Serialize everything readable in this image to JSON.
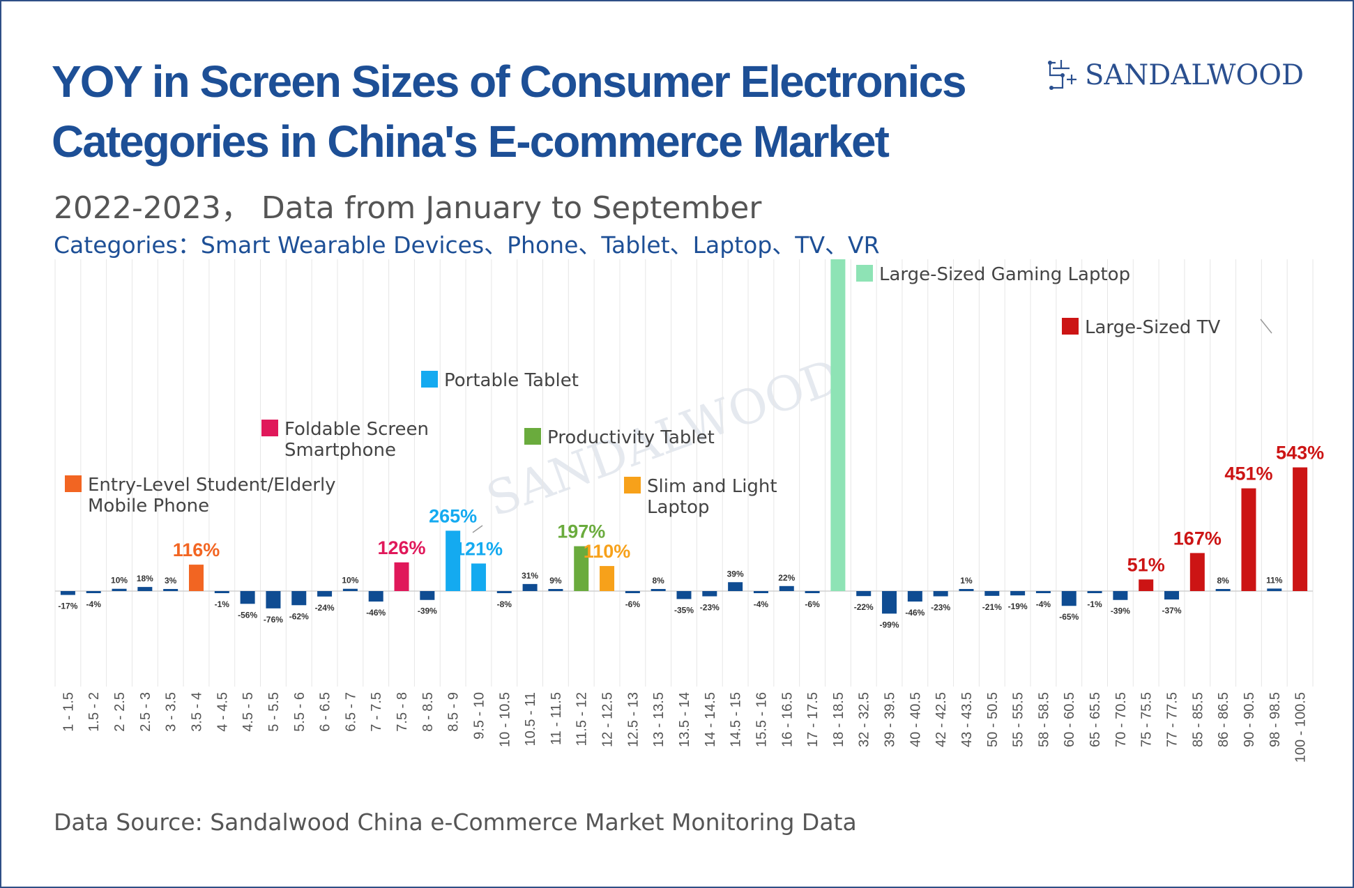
{
  "header": {
    "title_line1": "YOY in Screen Sizes of Consumer Electronics",
    "title_line2": "Categories in China's E-commerce Market",
    "subtitle": "2022-2023， Data from January to September",
    "categories_line": "Categories：Smart Wearable Devices、Phone、Tablet、Laptop、TV、VR"
  },
  "logo": {
    "text": "SANDALWOOD",
    "watermark": "SANDALWOOD",
    "icon": "sandalwood-logo-icon"
  },
  "footer": {
    "source": "Data Source: Sandalwood China e-Commerce Market Monitoring Data"
  },
  "colors": {
    "default_bar": "#0f4c92",
    "entry_level": "#f26522",
    "foldable": "#e0185a",
    "portable_tablet": "#14aaf0",
    "productivity_tablet": "#6aab3d",
    "slim_laptop": "#f7a11a",
    "gaming_laptop": "#8ee3b5",
    "large_tv": "#cc1414",
    "title": "#1d4f96"
  },
  "chart_data": {
    "type": "bar",
    "title": "YOY in Screen Sizes of Consumer Electronics Categories in China's E-commerce Market",
    "categories": [
      "1 - 1.5",
      "1.5 - 2",
      "2 - 2.5",
      "2.5 - 3",
      "3 - 3.5",
      "3.5 - 4",
      "4 - 4.5",
      "4.5 - 5",
      "5 - 5.5",
      "5.5 - 6",
      "6 - 6.5",
      "6.5 - 7",
      "7 - 7.5",
      "7.5 - 8",
      "8 - 8.5",
      "8.5 - 9",
      "9.5 - 10",
      "10 - 10.5",
      "10.5 - 11",
      "11 - 11.5",
      "11.5 - 12",
      "12 - 12.5",
      "12.5 - 13",
      "13 - 13.5",
      "13.5 - 14",
      "14 - 14.5",
      "14.5 - 15",
      "15.5 - 16",
      "16 - 16.5",
      "17 - 17.5",
      "18 - 18.5",
      "32 - 32.5",
      "39 - 39.5",
      "40 - 40.5",
      "42 - 42.5",
      "43 - 43.5",
      "50 - 50.5",
      "55 - 55.5",
      "58 - 58.5",
      "60 - 60.5",
      "65 - 65.5",
      "70 - 70.5",
      "75 - 75.5",
      "77 - 77.5",
      "85 - 85.5",
      "86 - 86.5",
      "90 - 90.5",
      "98 - 98.5",
      "100 - 100.5"
    ],
    "values": [
      -17,
      -4,
      10,
      18,
      3,
      116,
      -1,
      -56,
      -76,
      -62,
      -24,
      10,
      -46,
      126,
      -39,
      265,
      121,
      -8,
      31,
      9,
      197,
      110,
      -6,
      8,
      -35,
      -23,
      39,
      -4,
      22,
      -6,
      null,
      -22,
      -99,
      -46,
      -23,
      1,
      -21,
      -19,
      -4,
      -65,
      -1,
      -39,
      51,
      -37,
      167,
      8,
      451,
      11,
      543
    ],
    "labels": [
      "-17%",
      "-4%",
      "10%",
      "18%",
      "3%",
      "116%",
      "-1%",
      "-56%",
      "-76%",
      "-62%",
      "-24%",
      "10%",
      "-46%",
      "126%",
      "-39%",
      "265%",
      "121%",
      "-8%",
      "31%",
      "9%",
      "197%",
      "110%",
      "-6%",
      "8%",
      "-35%",
      "-23%",
      "39%",
      "-4%",
      "22%",
      "-6%",
      "",
      "-22%",
      "-99%",
      "-46%",
      "-23%",
      "1%",
      "-21%",
      "-19%",
      "-4%",
      "-65%",
      "-1%",
      "-39%",
      "51%",
      "-37%",
      "167%",
      "8%",
      "451%",
      "11%",
      "543%"
    ],
    "highlights": [
      {
        "name": "Entry-Level Student/Elderly Mobile Phone",
        "index": 5,
        "color": "#f26522"
      },
      {
        "name": "Foldable Screen Smartphone",
        "index": 13,
        "color": "#e0185a"
      },
      {
        "name": "Portable Tablet",
        "indices": [
          15,
          16
        ],
        "color": "#14aaf0"
      },
      {
        "name": "Productivity Tablet",
        "index": 20,
        "color": "#6aab3d"
      },
      {
        "name": "Slim and Light Laptop",
        "index": 21,
        "color": "#f7a11a"
      },
      {
        "name": "Large-Sized Gaming Laptop",
        "index": 30,
        "color": "#8ee3b5"
      },
      {
        "name": "Large-Sized TV",
        "indices": [
          42,
          44,
          46,
          48
        ],
        "color": "#cc1414"
      }
    ],
    "legend_entries": [
      {
        "text": "Entry-Level Student/Elderly",
        "text2": "Mobile Phone",
        "color": "#f26522"
      },
      {
        "text": "Foldable Screen",
        "text2": "Smartphone",
        "color": "#e0185a"
      },
      {
        "text": "Portable Tablet",
        "text2": "",
        "color": "#14aaf0"
      },
      {
        "text": "Productivity Tablet",
        "text2": "",
        "color": "#6aab3d"
      },
      {
        "text": "Slim and Light",
        "text2": "Laptop",
        "color": "#f7a11a"
      },
      {
        "text": "Large-Sized Gaming Laptop",
        "text2": "",
        "color": "#8ee3b5"
      },
      {
        "text": "Large-Sized TV",
        "text2": "",
        "color": "#cc1414"
      }
    ],
    "grid": true,
    "legend_placement": "inline annotations"
  }
}
